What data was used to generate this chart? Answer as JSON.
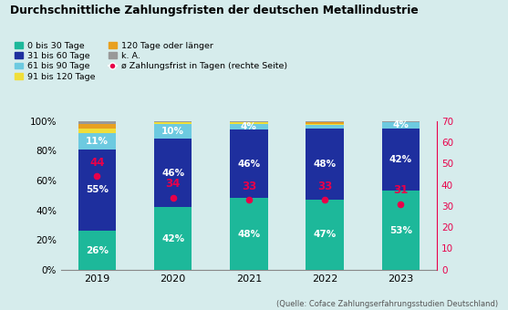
{
  "title": "Durchschnittliche Zahlungsfristen der deutschen Metallindustrie",
  "subtitle": "(Quelle: Coface Zahlungserfahrungsstudien Deutschland)",
  "years": [
    "2019",
    "2020",
    "2021",
    "2022",
    "2023"
  ],
  "segments": {
    "0 bis 30 Tage": [
      26,
      42,
      48,
      47,
      53
    ],
    "31 bis 60 Tage": [
      55,
      46,
      46,
      48,
      42
    ],
    "61 bis 90 Tage": [
      11,
      10,
      4,
      2,
      4
    ],
    "91 bis 120 Tage": [
      3,
      1,
      1,
      1,
      0
    ],
    "120 Tage oder länger": [
      3,
      0,
      0,
      1,
      0
    ],
    "k. A.": [
      2,
      1,
      1,
      1,
      1
    ]
  },
  "avg_days": [
    44,
    34,
    33,
    33,
    31
  ],
  "segment_colors": {
    "0 bis 30 Tage": "#1db89a",
    "31 bis 60 Tage": "#1e2f9e",
    "61 bis 90 Tage": "#6dcae0",
    "91 bis 120 Tage": "#f0de3a",
    "120 Tage oder länger": "#e8a020",
    "k. A.": "#999999"
  },
  "avg_color": "#e8004a",
  "background_color": "#d6ecec",
  "bar_width": 0.5,
  "ylim_left": [
    0,
    100
  ],
  "ylim_right": [
    0,
    70
  ],
  "right_ticks": [
    0,
    10,
    20,
    30,
    40,
    50,
    60,
    70
  ]
}
